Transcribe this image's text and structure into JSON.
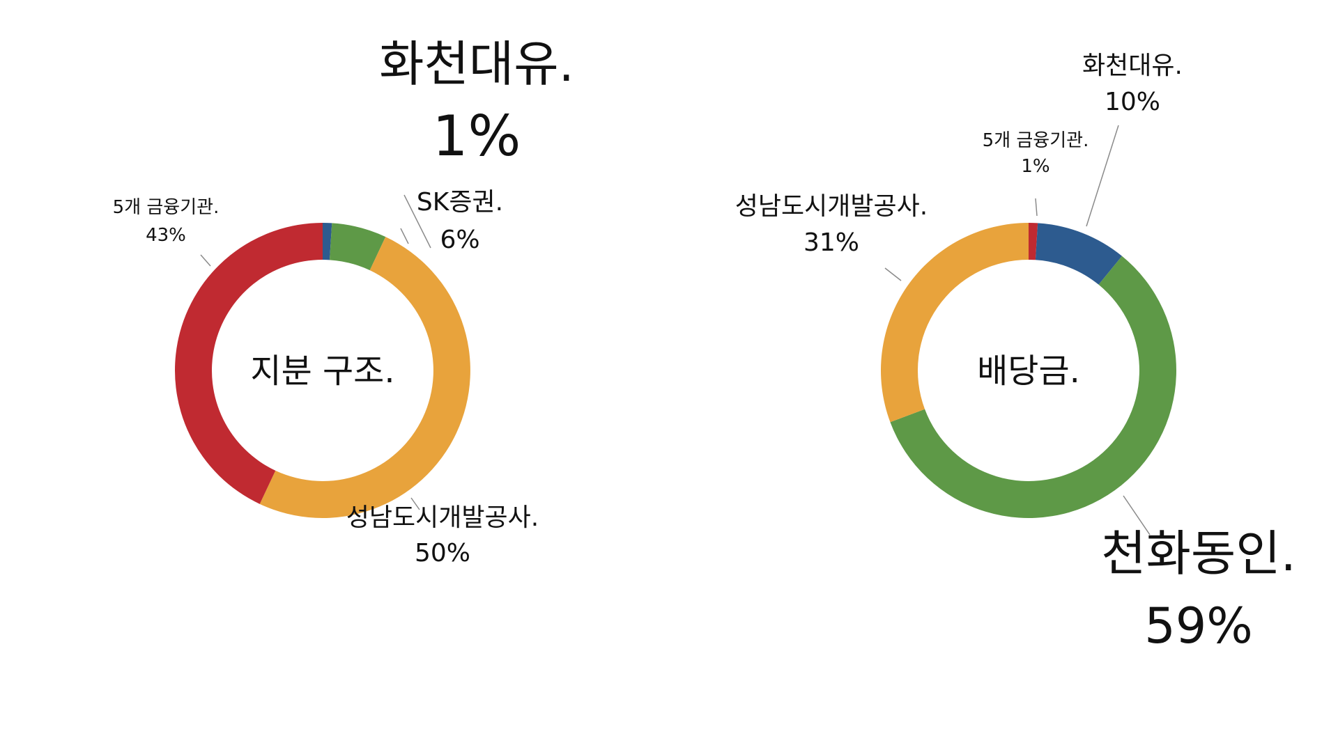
{
  "chart_data": [
    {
      "type": "pie",
      "title": "지분 구조.",
      "slices": [
        {
          "label": "화천대유.",
          "value": 1,
          "display": "1%",
          "color": "#2D5B8F"
        },
        {
          "label": "SK증권.",
          "value": 6,
          "display": "6%",
          "color": "#5E9947"
        },
        {
          "label": "성남도시개발공사.",
          "value": 50,
          "display": "50%",
          "color": "#E8A33C"
        },
        {
          "label": "5개 금융기관.",
          "value": 43,
          "display": "43%",
          "color": "#C02A31"
        }
      ]
    },
    {
      "type": "pie",
      "title": "배당금.",
      "slices": [
        {
          "label": "5개 금융기관.",
          "value": 1,
          "display": "1%",
          "color": "#C02A31"
        },
        {
          "label": "화천대유.",
          "value": 10,
          "display": "10%",
          "color": "#2D5B8F"
        },
        {
          "label": "천화동인.",
          "value": 59,
          "display": "59%",
          "color": "#5E9947"
        },
        {
          "label": "성남도시개발공사.",
          "value": 31,
          "display": "31%",
          "color": "#E8A33C"
        }
      ]
    }
  ]
}
